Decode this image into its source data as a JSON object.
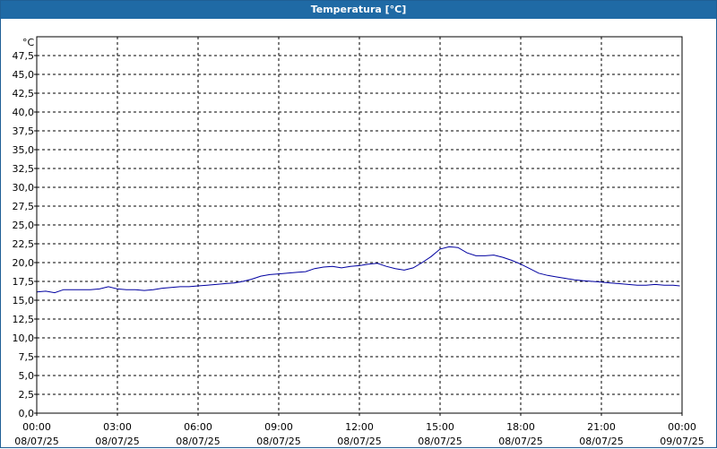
{
  "window": {
    "title": "Temperatura [°C]"
  },
  "chart_data": {
    "type": "line",
    "title": "Temperatura [°C]",
    "ylabel": "°C",
    "ylim": [
      0,
      50
    ],
    "xlim": [
      "08/07/25 00:00",
      "09/07/25 00:00"
    ],
    "grid": true,
    "line_color": "#0000a0",
    "y_ticks": [
      "0,0",
      "2,5",
      "5,0",
      "7,5",
      "10,0",
      "12,5",
      "15,0",
      "17,5",
      "20,0",
      "22,5",
      "25,0",
      "27,5",
      "30,0",
      "32,5",
      "35,0",
      "37,5",
      "40,0",
      "42,5",
      "45,0",
      "47,5"
    ],
    "x_ticks": [
      {
        "time": "00:00",
        "date": "08/07/25"
      },
      {
        "time": "03:00",
        "date": "08/07/25"
      },
      {
        "time": "06:00",
        "date": "08/07/25"
      },
      {
        "time": "09:00",
        "date": "08/07/25"
      },
      {
        "time": "12:00",
        "date": "08/07/25"
      },
      {
        "time": "15:00",
        "date": "08/07/25"
      },
      {
        "time": "18:00",
        "date": "08/07/25"
      },
      {
        "time": "21:00",
        "date": "08/07/25"
      },
      {
        "time": "00:00",
        "date": "09/07/25"
      }
    ],
    "series": [
      {
        "x": [
          "00:00",
          "00:20",
          "00:40",
          "01:00",
          "01:20",
          "01:40",
          "02:00",
          "02:20",
          "02:40",
          "03:00",
          "03:20",
          "03:40",
          "04:00",
          "04:20",
          "04:40",
          "05:00",
          "05:20",
          "05:40",
          "06:00",
          "06:20",
          "06:40",
          "07:00",
          "07:20",
          "07:40",
          "08:00",
          "08:20",
          "08:40",
          "09:00",
          "09:20",
          "09:40",
          "10:00",
          "10:20",
          "10:40",
          "11:00",
          "11:20",
          "11:40",
          "12:00",
          "12:20",
          "12:40",
          "13:00",
          "13:20",
          "13:40",
          "14:00",
          "14:20",
          "14:40",
          "15:00",
          "15:20",
          "15:40",
          "16:00",
          "16:20",
          "16:40",
          "17:00",
          "17:20",
          "17:40",
          "18:00",
          "18:20",
          "18:40",
          "19:00",
          "19:20",
          "19:40",
          "20:00",
          "20:20",
          "20:40",
          "21:00",
          "21:20",
          "21:40",
          "22:00",
          "22:20",
          "22:40",
          "23:00",
          "23:20",
          "23:40",
          "23:55"
        ],
        "y": [
          16.1,
          16.2,
          16.0,
          16.4,
          16.4,
          16.4,
          16.4,
          16.5,
          16.8,
          16.5,
          16.4,
          16.4,
          16.3,
          16.4,
          16.6,
          16.7,
          16.8,
          16.8,
          16.9,
          17.0,
          17.1,
          17.2,
          17.3,
          17.5,
          17.8,
          18.2,
          18.4,
          18.5,
          18.6,
          18.7,
          18.8,
          19.2,
          19.4,
          19.5,
          19.3,
          19.5,
          19.6,
          19.8,
          19.9,
          19.5,
          19.2,
          19.0,
          19.3,
          20.0,
          20.8,
          21.8,
          22.1,
          22.0,
          21.3,
          20.9,
          20.9,
          21.0,
          20.7,
          20.3,
          19.8,
          19.2,
          18.6,
          18.3,
          18.1,
          17.9,
          17.7,
          17.6,
          17.5,
          17.4,
          17.3,
          17.2,
          17.1,
          17.0,
          17.0,
          17.1,
          17.0,
          17.0,
          16.9
        ]
      }
    ]
  }
}
